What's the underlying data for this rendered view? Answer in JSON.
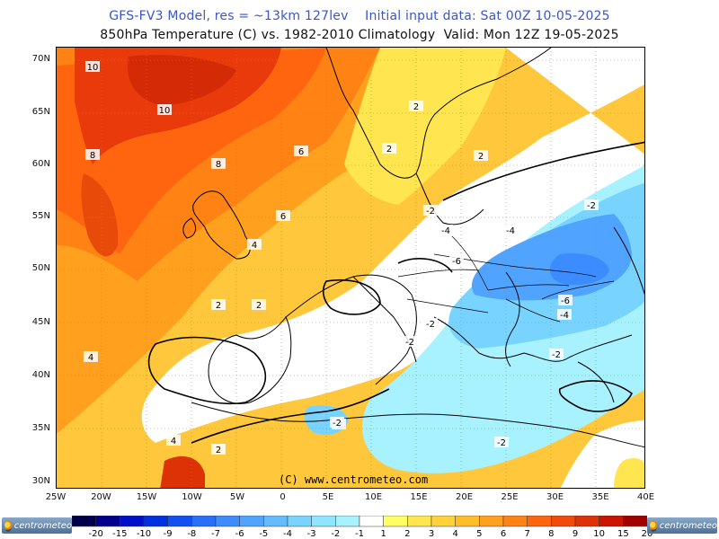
{
  "header": {
    "line1": "GFS-FV3 Model, res = ~13km 127lev    Initial input data: Sat 00Z 10-05-2025",
    "line2": "850hPa Temperature (C) vs. 1982-2010 Climatology  Valid: Mon 12Z 19-05-2025"
  },
  "map": {
    "lat_labels": [
      "70N",
      "65N",
      "60N",
      "55N",
      "50N",
      "45N",
      "40N",
      "35N",
      "30N"
    ],
    "lon_labels": [
      "25W",
      "20W",
      "15W",
      "10W",
      "5W",
      "0",
      "5E",
      "10E",
      "15E",
      "20E",
      "25E",
      "30E",
      "35E",
      "40E"
    ],
    "copyright": "(C) www.centrometeo.com"
  },
  "contour_labels": [
    {
      "text": "10"
    },
    {
      "text": "10"
    },
    {
      "text": "8"
    },
    {
      "text": "8"
    },
    {
      "text": "6"
    },
    {
      "text": "4"
    },
    {
      "text": "2"
    },
    {
      "text": "4"
    },
    {
      "text": "4"
    },
    {
      "text": "2"
    },
    {
      "text": "2"
    },
    {
      "text": "2"
    },
    {
      "text": "-2"
    },
    {
      "text": "-4"
    },
    {
      "text": "-4"
    },
    {
      "text": "-6"
    },
    {
      "text": "-6"
    },
    {
      "text": "-4"
    },
    {
      "text": "-2"
    },
    {
      "text": "-2"
    },
    {
      "text": "-2"
    },
    {
      "text": "-2"
    },
    {
      "text": "-2"
    },
    {
      "text": "-2"
    },
    {
      "text": "2"
    },
    {
      "text": "-2"
    },
    {
      "text": "6"
    },
    {
      "text": "2"
    }
  ],
  "colorbar": {
    "labels": [
      "-20",
      "-15",
      "-10",
      "-9",
      "-8",
      "-7",
      "-6",
      "-5",
      "-4",
      "-3",
      "-2",
      "-1",
      "1",
      "2",
      "3",
      "4",
      "5",
      "6",
      "7",
      "8",
      "9",
      "10",
      "15",
      "20"
    ],
    "colors": [
      "#00004a",
      "#00008c",
      "#0010c8",
      "#0030e0",
      "#1050f0",
      "#2870f8",
      "#3c8cff",
      "#50a4ff",
      "#64bcff",
      "#78d4ff",
      "#8ce6ff",
      "#a8f2ff",
      "#ffffff",
      "#ffff64",
      "#ffe650",
      "#ffd23c",
      "#ffbe28",
      "#ffa01e",
      "#ff8214",
      "#ff640f",
      "#f04b0a",
      "#dc3205",
      "#c81400",
      "#a00000"
    ],
    "brand_left": "centrometeo",
    "brand_right": "centrometeo"
  }
}
